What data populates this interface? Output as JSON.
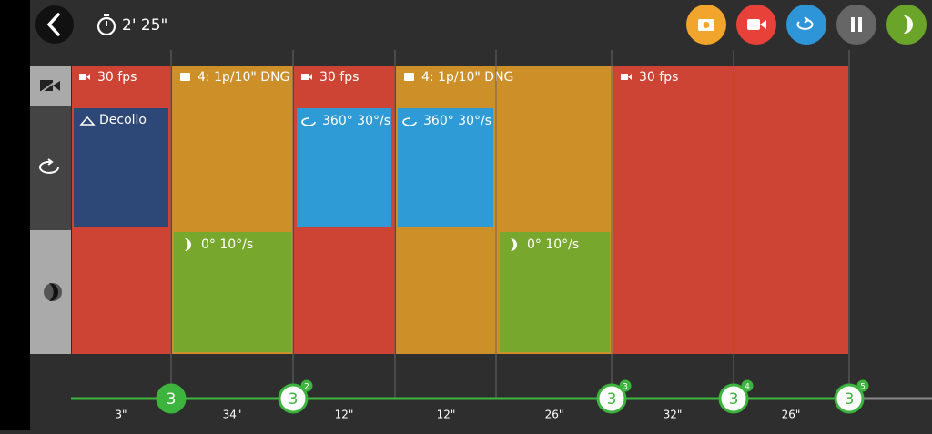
{
  "header": {
    "timer": "2' 25\""
  },
  "tracks": [
    {
      "type": "video",
      "label": "30 fps",
      "boxes": []
    },
    {
      "type": "photo",
      "label": "4: 1p/10\" DNG",
      "boxes": [
        {
          "row": "tilt",
          "label": "0° 10°/s"
        }
      ]
    },
    {
      "type": "video",
      "label": "30 fps",
      "boxes": [
        {
          "row": "pan",
          "label": "360° 30°/s"
        }
      ]
    },
    {
      "type": "photo",
      "label": "4: 1p/10\" DNG",
      "boxes": [
        {
          "row": "pan",
          "label": "360° 30°/s"
        },
        {
          "row": "tilt",
          "label": "0° 10°/s"
        }
      ]
    },
    {
      "type": "video",
      "label": "30 fps",
      "boxes": []
    }
  ],
  "takeoff": {
    "label": "Decollo"
  },
  "timeline": {
    "nodes": [
      {
        "label": "3"
      },
      {
        "label": "3",
        "badge": "2"
      },
      {
        "label": "3",
        "badge": "3"
      },
      {
        "label": "3",
        "badge": "4"
      },
      {
        "label": "3",
        "badge": "5"
      }
    ],
    "durations": [
      "3\"",
      "34\"",
      "12\"",
      "12\"",
      "26\"",
      "32\"",
      "26\""
    ]
  }
}
